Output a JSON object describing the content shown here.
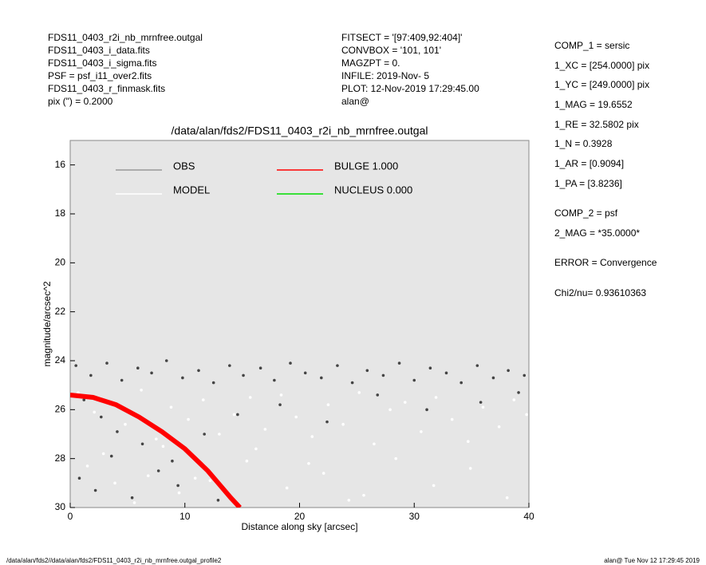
{
  "header": {
    "left": [
      "FDS11_0403_r2i_nb_mrnfree.outgal",
      "FDS11_0403_i_data.fits",
      "FDS11_0403_i_sigma.fits",
      "PSF    = psf_i11_over2.fits",
      "FDS11_0403_r_finmask.fits",
      "pix (\") =  0.2000"
    ],
    "middle": [
      "FITSECT = '[97:409,92:404]'",
      "CONVBOX = '101, 101'",
      "MAGZPT  =              0.",
      "INFILE: 2019-Nov- 5",
      "PLOT: 12-Nov-2019 17:29:45.00",
      "alan@"
    ]
  },
  "parameters": [
    "COMP_1  = sersic",
    "1_XC    = [254.0000] pix",
    "1_YC    = [249.0000] pix",
    "1_MAG   = 19.6552",
    "1_RE    = 32.5802 pix",
    "1_N     = 0.3928",
    "1_AR    = [0.9094]",
    "1_PA    = [3.8236]",
    "COMP_2  = psf",
    "2_MAG   = *35.0000*",
    "ERROR   = Convergence",
    "Chi2/nu=      0.93610363"
  ],
  "footer": {
    "left": "/data/alan/fds2//data/alan/fds2/FDS11_0403_r2i_nb_mrnfree.outgal_profile2",
    "right": "alan@  Tue Nov 12 17:29:45 2019"
  },
  "chart_data": {
    "type": "scatter",
    "title": "/data/alan/fds2/FDS11_0403_r2i_nb_mrnfree.outgal",
    "x_label": "Distance along sky [arcsec]",
    "y_label": "magnitude/arcsec^2",
    "xlim": [
      0,
      40
    ],
    "xticks": [
      0,
      10,
      20,
      30,
      40
    ],
    "ylim": [
      15,
      30
    ],
    "yticks": [
      16,
      18,
      20,
      22,
      24,
      26,
      28,
      30
    ],
    "y_inverted": true,
    "background": "#e6e6e6",
    "series": [
      {
        "name": "OBS",
        "type": "scatter",
        "color": "#444444",
        "legend_color": "#999999",
        "x": [
          0.5,
          1.8,
          3.2,
          4.5,
          5.9,
          7.1,
          8.4,
          9.8,
          11.2,
          12.5,
          13.9,
          15.1,
          16.6,
          17.8,
          19.2,
          20.5,
          21.9,
          23.3,
          24.6,
          25.9,
          27.3,
          28.7,
          30.0,
          31.4,
          32.8,
          34.1,
          35.5,
          36.9,
          38.2,
          39.6,
          1.2,
          2.7,
          4.1,
          6.3,
          8.9,
          11.7,
          14.6,
          18.3,
          22.4,
          26.8,
          31.1,
          35.8,
          39.1,
          0.8,
          2.2,
          3.6,
          5.4,
          7.7,
          9.4,
          12.9
        ],
        "values": [
          24.2,
          24.6,
          24.1,
          24.8,
          24.3,
          24.5,
          24.0,
          24.7,
          24.4,
          24.9,
          24.2,
          24.6,
          24.3,
          24.8,
          24.1,
          24.5,
          24.7,
          24.2,
          24.9,
          24.4,
          24.6,
          24.1,
          24.8,
          24.3,
          24.5,
          24.9,
          24.2,
          24.7,
          24.4,
          24.6,
          25.6,
          26.3,
          26.9,
          27.4,
          28.1,
          27.0,
          26.2,
          25.8,
          26.5,
          25.4,
          26.0,
          25.7,
          25.3,
          28.8,
          29.3,
          27.9,
          29.6,
          28.5,
          29.1,
          29.7
        ]
      },
      {
        "name": "MODEL",
        "type": "scatter",
        "color": "#ffffff",
        "legend_color": "#ffffff",
        "x": [
          0.7,
          2.1,
          3.4,
          4.8,
          6.2,
          7.5,
          8.8,
          10.3,
          11.6,
          13.0,
          14.3,
          15.7,
          17.0,
          18.4,
          19.7,
          21.1,
          22.5,
          23.8,
          25.2,
          26.5,
          27.9,
          29.2,
          30.6,
          31.9,
          33.3,
          34.7,
          36.0,
          37.4,
          38.7,
          39.8,
          1.5,
          3.9,
          6.8,
          9.5,
          12.2,
          15.4,
          18.9,
          22.1,
          25.6,
          28.4,
          31.7,
          34.9,
          38.1,
          2.9,
          5.6,
          8.1,
          10.9,
          16.2,
          20.8,
          24.3
        ],
        "values": [
          25.3,
          26.1,
          25.7,
          26.6,
          25.2,
          27.2,
          25.9,
          26.4,
          25.6,
          27.0,
          26.2,
          25.5,
          26.8,
          25.4,
          26.3,
          27.1,
          25.8,
          26.6,
          25.3,
          27.4,
          26.0,
          25.7,
          26.9,
          25.5,
          26.4,
          27.3,
          25.9,
          26.7,
          25.6,
          26.2,
          28.3,
          29.0,
          28.7,
          29.4,
          28.9,
          28.1,
          29.2,
          28.6,
          29.5,
          28.0,
          29.1,
          28.4,
          29.6,
          27.8,
          29.8,
          27.5,
          28.8,
          27.6,
          28.2,
          29.7
        ]
      },
      {
        "name": "BULGE  1.000",
        "type": "line",
        "color": "#ff0000",
        "legend_color": "#ff0000",
        "x": [
          0,
          2,
          4,
          6,
          8,
          10,
          12,
          14,
          14.8
        ],
        "values": [
          25.4,
          25.5,
          25.8,
          26.3,
          26.9,
          27.6,
          28.5,
          29.6,
          30
        ]
      },
      {
        "name": "NUCLEUS  0.000",
        "type": "line",
        "color": "#00dd00",
        "legend_color": "#00dd00",
        "x": [],
        "values": []
      }
    ]
  }
}
